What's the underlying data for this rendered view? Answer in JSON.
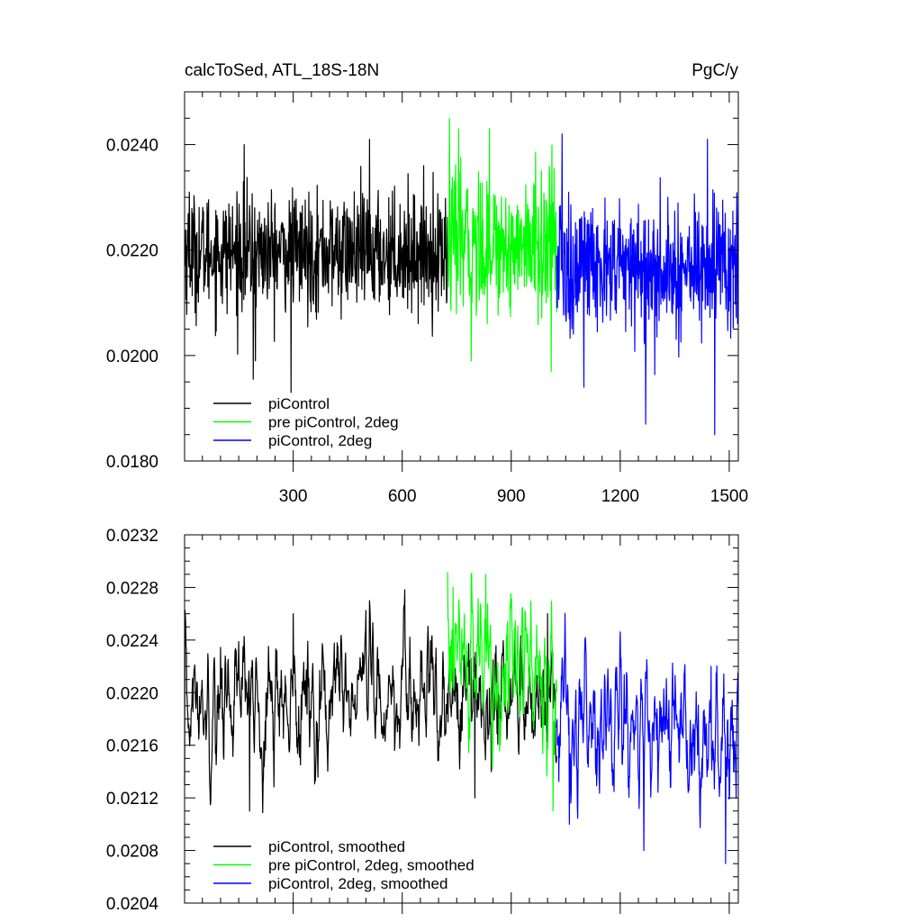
{
  "colors": {
    "piControl": "#000000",
    "prePiControl2deg": "#00ff00",
    "piControl2deg": "#0000ff"
  },
  "chart_data": [
    {
      "type": "line",
      "title": "calcToSed, ATL_18S-18N",
      "units": "PgC/y",
      "xlabel": "",
      "ylabel": "",
      "xlim": [
        1,
        1525
      ],
      "ylim": [
        0.018,
        0.025
      ],
      "xticks": [
        300,
        600,
        900,
        1200,
        1500
      ],
      "xtick_labels": [
        "300",
        "600",
        "900",
        "1200",
        "1500"
      ],
      "yticks": [
        0.018,
        0.02,
        0.022,
        0.024
      ],
      "ytick_labels": [
        "0.0180",
        "0.0200",
        "0.0220",
        "0.0240"
      ],
      "legend_position": "bottom-left",
      "series": [
        {
          "name": "piControl",
          "color": "#000000",
          "x_start": 1,
          "x_end": 725,
          "mean": 0.02195,
          "sd": 0.00055,
          "points": [
            [
              14,
              0.0231
            ],
            [
              165,
              0.024
            ],
            [
              190,
              0.01955
            ],
            [
              196,
              0.0199
            ],
            [
              294,
              0.0193
            ],
            [
              510,
              0.0241
            ],
            [
              850,
              0.0234
            ],
            [
              980,
              0.0194
            ],
            [
              1000,
              0.0196
            ],
            [
              1150,
              0.0226
            ]
          ]
        },
        {
          "name": "pre piControl, 2deg",
          "color": "#00ff00",
          "x_start": 725,
          "x_end": 1025,
          "mean": 0.0221,
          "sd": 0.00065,
          "points": [
            [
              730,
              0.0245
            ],
            [
              755,
              0.0243
            ],
            [
              790,
              0.0199
            ],
            [
              840,
              0.0243
            ],
            [
              1010,
              0.0197
            ]
          ]
        },
        {
          "name": "piControl, 2deg",
          "color": "#0000ff",
          "x_start": 1025,
          "x_end": 1525,
          "mean": 0.02165,
          "sd": 0.00065,
          "points": [
            [
              1040,
              0.0242
            ],
            [
              1100,
              0.0194
            ],
            [
              1270,
              0.0187
            ],
            [
              1440,
              0.0241
            ],
            [
              1460,
              0.0185
            ]
          ]
        }
      ]
    },
    {
      "type": "line",
      "title": "",
      "xlim": [
        1,
        1525
      ],
      "ylim": [
        0.0204,
        0.0232
      ],
      "xticks": [
        300,
        600,
        900,
        1200,
        1500
      ],
      "xtick_labels": [],
      "yticks": [
        0.0204,
        0.0208,
        0.0212,
        0.0216,
        0.022,
        0.0224,
        0.0228,
        0.0232
      ],
      "ytick_labels": [
        "0.0204",
        "0.0208",
        "0.0212",
        "0.0216",
        "0.0220",
        "0.0224",
        "0.0228",
        "0.0232"
      ],
      "legend_position": "bottom-left",
      "series": [
        {
          "name": "piControl, smoothed",
          "color": "#000000",
          "x_start": 1,
          "x_end": 1025,
          "mean": 0.02195,
          "sd": 0.00025,
          "points": [
            [
              1,
              0.0213
            ],
            [
              180,
              0.0211
            ],
            [
              300,
              0.0226
            ],
            [
              510,
              0.0227
            ],
            [
              800,
              0.0212
            ],
            [
              1000,
              0.0226
            ],
            [
              1180,
              0.0227
            ]
          ]
        },
        {
          "name": "pre piControl, 2deg, smoothed",
          "color": "#00ff00",
          "x_start": 725,
          "x_end": 1025,
          "mean": 0.0222,
          "sd": 0.0003,
          "points": [
            [
              740,
              0.0228
            ],
            [
              790,
              0.0229
            ],
            [
              830,
              0.0229
            ],
            [
              1015,
              0.0211
            ]
          ]
        },
        {
          "name": "piControl, 2deg, smoothed",
          "color": "#0000ff",
          "x_start": 1025,
          "x_end": 1525,
          "mean": 0.02175,
          "sd": 0.0003,
          "points": [
            [
              1060,
              0.021
            ],
            [
              1265,
              0.0208
            ],
            [
              1450,
              0.0222
            ],
            [
              1490,
              0.0207
            ]
          ]
        }
      ]
    }
  ]
}
